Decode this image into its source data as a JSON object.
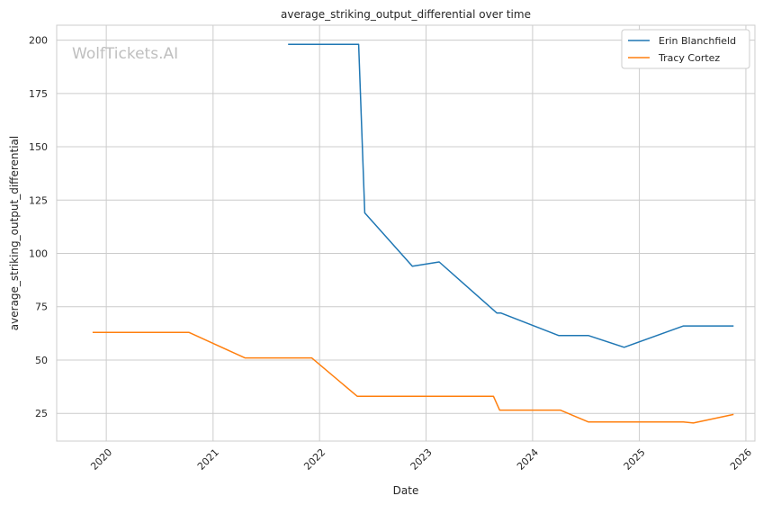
{
  "chart_data": {
    "type": "line",
    "title": "average_striking_output_differential over time",
    "xlabel": "Date",
    "ylabel": "average_striking_output_differential",
    "watermark": "WolfTickets.AI",
    "xlim": [
      "2019-07-15",
      "2026-02-01"
    ],
    "ylim": [
      12,
      207
    ],
    "x_ticks": [
      {
        "date": "2020-01-01",
        "label": "2020"
      },
      {
        "date": "2021-01-01",
        "label": "2021"
      },
      {
        "date": "2022-01-01",
        "label": "2022"
      },
      {
        "date": "2023-01-01",
        "label": "2023"
      },
      {
        "date": "2024-01-01",
        "label": "2024"
      },
      {
        "date": "2025-01-01",
        "label": "2025"
      },
      {
        "date": "2026-01-01",
        "label": "2026"
      }
    ],
    "y_ticks": [
      25,
      50,
      75,
      100,
      125,
      150,
      175,
      200
    ],
    "grid": true,
    "legend_position": "top-right",
    "series": [
      {
        "name": "Erin Blanchfield",
        "color": "#1f77b4",
        "points": [
          [
            "2021-09-15",
            198
          ],
          [
            "2022-05-15",
            198
          ],
          [
            "2022-06-05",
            119
          ],
          [
            "2022-11-15",
            94
          ],
          [
            "2023-02-15",
            96
          ],
          [
            "2023-09-01",
            72
          ],
          [
            "2023-09-15",
            72
          ],
          [
            "2024-03-30",
            61.5
          ],
          [
            "2024-07-10",
            61.5
          ],
          [
            "2024-11-10",
            56
          ],
          [
            "2025-06-01",
            66
          ],
          [
            "2025-11-20",
            66
          ]
        ]
      },
      {
        "name": "Tracy Cortez",
        "color": "#ff7f0e",
        "points": [
          [
            "2019-11-15",
            63
          ],
          [
            "2020-10-10",
            63
          ],
          [
            "2021-04-20",
            51
          ],
          [
            "2021-12-05",
            51
          ],
          [
            "2022-05-10",
            33
          ],
          [
            "2023-08-20",
            33
          ],
          [
            "2023-09-10",
            26.5
          ],
          [
            "2024-04-05",
            26.5
          ],
          [
            "2024-07-10",
            21
          ],
          [
            "2025-06-01",
            21
          ],
          [
            "2025-07-05",
            20.5
          ],
          [
            "2025-11-20",
            24.5
          ]
        ]
      }
    ]
  }
}
